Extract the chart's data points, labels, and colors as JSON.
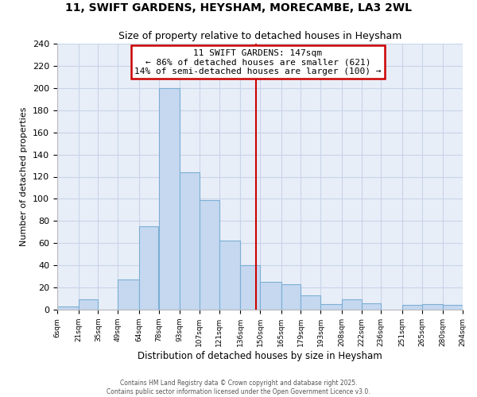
{
  "title": "11, SWIFT GARDENS, HEYSHAM, MORECAMBE, LA3 2WL",
  "subtitle": "Size of property relative to detached houses in Heysham",
  "xlabel": "Distribution of detached houses by size in Heysham",
  "ylabel": "Number of detached properties",
  "bar_color": "#c5d8f0",
  "bar_edge_color": "#7bafd4",
  "background_color": "#ffffff",
  "plot_bg_color": "#e8eef8",
  "grid_color": "#c8d4e8",
  "vline_x": 147,
  "vline_color": "#cc0000",
  "annotation_title": "11 SWIFT GARDENS: 147sqm",
  "annotation_line1": "← 86% of detached houses are smaller (621)",
  "annotation_line2": "14% of semi-detached houses are larger (100) →",
  "annotation_box_color": "#ffffff",
  "annotation_box_edge": "#cc0000",
  "bin_edges": [
    6,
    21,
    35,
    49,
    64,
    78,
    93,
    107,
    121,
    136,
    150,
    165,
    179,
    193,
    208,
    222,
    236,
    251,
    265,
    280,
    294
  ],
  "bin_heights": [
    3,
    9,
    0,
    27,
    75,
    200,
    124,
    99,
    62,
    40,
    25,
    23,
    13,
    5,
    9,
    6,
    0,
    4,
    5,
    4
  ],
  "tick_labels": [
    "6sqm",
    "21sqm",
    "35sqm",
    "49sqm",
    "64sqm",
    "78sqm",
    "93sqm",
    "107sqm",
    "121sqm",
    "136sqm",
    "150sqm",
    "165sqm",
    "179sqm",
    "193sqm",
    "208sqm",
    "222sqm",
    "236sqm",
    "251sqm",
    "265sqm",
    "280sqm",
    "294sqm"
  ],
  "ylim": [
    0,
    240
  ],
  "yticks": [
    0,
    20,
    40,
    60,
    80,
    100,
    120,
    140,
    160,
    180,
    200,
    220,
    240
  ],
  "footer_line1": "Contains HM Land Registry data © Crown copyright and database right 2025.",
  "footer_line2": "Contains public sector information licensed under the Open Government Licence v3.0."
}
